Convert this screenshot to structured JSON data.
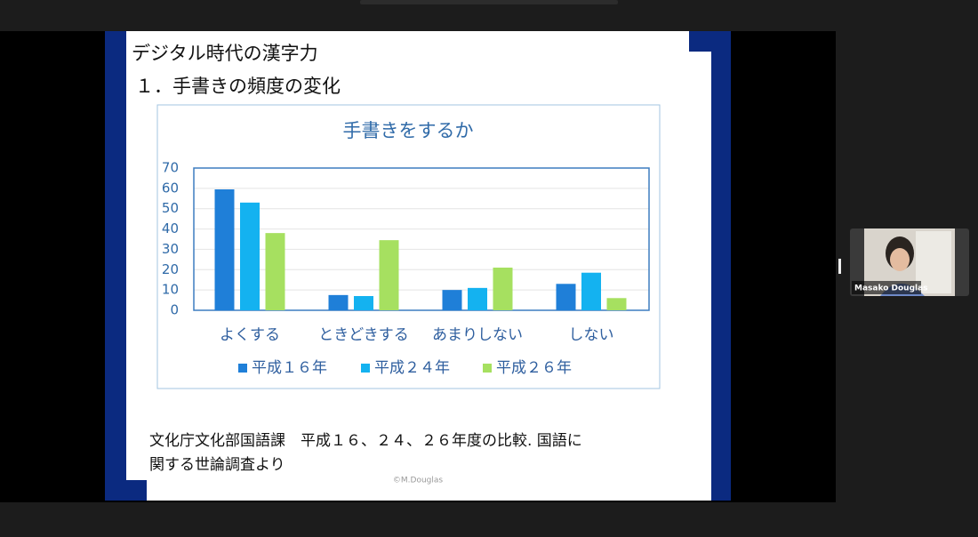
{
  "slide": {
    "title": "デジタル時代の漢字力",
    "subtitle": "１．手書きの頻度の変化",
    "source_lines": [
      "文化庁文化部国語課　平成１６、２４、２６年度の比較. 国語に",
      "関する世論調査より"
    ],
    "copyright": "©M.Douglas"
  },
  "chart_data": {
    "type": "bar",
    "title": "手書きをするか",
    "categories": [
      "よくする",
      "ときどきする",
      "あまりしない",
      "しない"
    ],
    "series": [
      {
        "name": "平成１６年",
        "color": "#1f7fd8",
        "values": [
          59.5,
          7.5,
          10,
          13
        ]
      },
      {
        "name": "平成２４年",
        "color": "#14b2f0",
        "values": [
          53,
          7,
          11,
          18.5
        ]
      },
      {
        "name": "平成２６年",
        "color": "#a6e060",
        "values": [
          38,
          34.5,
          21,
          6
        ]
      }
    ],
    "ylim": [
      0,
      70
    ],
    "yticks": [
      0,
      10,
      20,
      30,
      40,
      50,
      60,
      70
    ],
    "grid": true,
    "legend": "bottom"
  },
  "participant": {
    "name": "Masako Douglas"
  }
}
